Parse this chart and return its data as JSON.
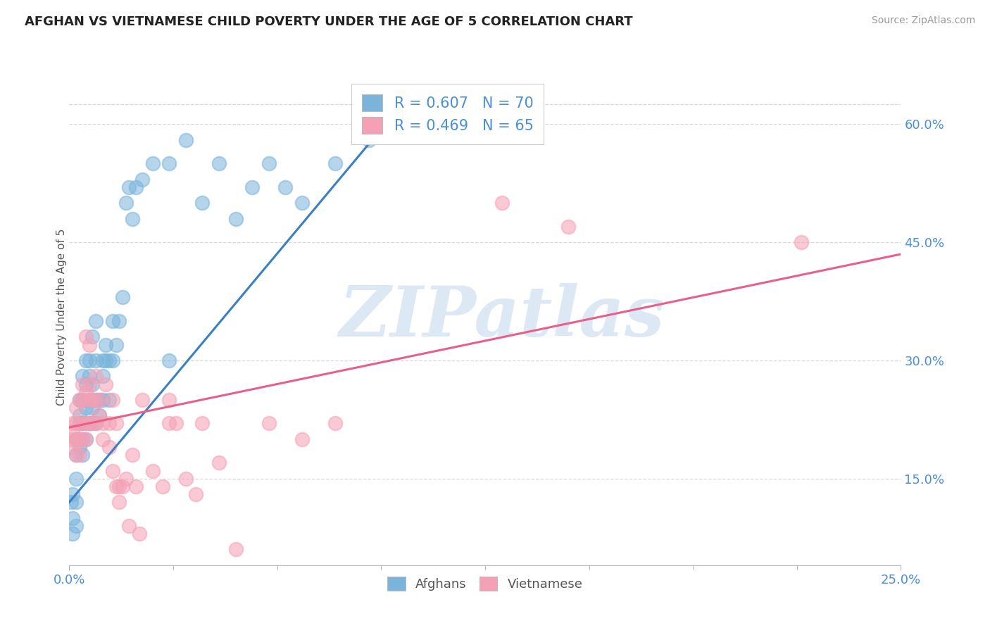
{
  "title": "AFGHAN VS VIETNAMESE CHILD POVERTY UNDER THE AGE OF 5 CORRELATION CHART",
  "source": "Source: ZipAtlas.com",
  "ylabel": "Child Poverty Under the Age of 5",
  "xlim": [
    0.0,
    0.25
  ],
  "ylim": [
    0.04,
    0.67
  ],
  "yticks_right": [
    0.15,
    0.3,
    0.45,
    0.6
  ],
  "ytick_right_labels": [
    "15.0%",
    "30.0%",
    "45.0%",
    "60.0%"
  ],
  "afghan_color": "#7ab4db",
  "viet_color": "#f5a0b5",
  "afghan_line_color": "#3a7fc1",
  "viet_line_color": "#e8608a",
  "afghan_R": 0.607,
  "afghan_N": 70,
  "viet_R": 0.469,
  "viet_N": 65,
  "watermark": "ZIPatlas",
  "background_color": "#ffffff",
  "grid_color": "#d8d8d8",
  "legend_label_afghan": "Afghans",
  "legend_label_viet": "Vietnamese",
  "tick_color": "#4a90d9",
  "afghan_scatter": [
    [
      0.0005,
      0.12
    ],
    [
      0.001,
      0.1
    ],
    [
      0.001,
      0.08
    ],
    [
      0.001,
      0.13
    ],
    [
      0.002,
      0.09
    ],
    [
      0.002,
      0.12
    ],
    [
      0.002,
      0.15
    ],
    [
      0.002,
      0.2
    ],
    [
      0.002,
      0.18
    ],
    [
      0.003,
      0.22
    ],
    [
      0.003,
      0.2
    ],
    [
      0.003,
      0.25
    ],
    [
      0.003,
      0.19
    ],
    [
      0.003,
      0.23
    ],
    [
      0.004,
      0.22
    ],
    [
      0.004,
      0.25
    ],
    [
      0.004,
      0.28
    ],
    [
      0.004,
      0.2
    ],
    [
      0.004,
      0.18
    ],
    [
      0.004,
      0.22
    ],
    [
      0.005,
      0.24
    ],
    [
      0.005,
      0.27
    ],
    [
      0.005,
      0.2
    ],
    [
      0.005,
      0.3
    ],
    [
      0.005,
      0.22
    ],
    [
      0.006,
      0.22
    ],
    [
      0.006,
      0.25
    ],
    [
      0.006,
      0.3
    ],
    [
      0.006,
      0.28
    ],
    [
      0.006,
      0.22
    ],
    [
      0.007,
      0.24
    ],
    [
      0.007,
      0.27
    ],
    [
      0.007,
      0.25
    ],
    [
      0.007,
      0.33
    ],
    [
      0.008,
      0.25
    ],
    [
      0.008,
      0.3
    ],
    [
      0.008,
      0.35
    ],
    [
      0.008,
      0.22
    ],
    [
      0.009,
      0.25
    ],
    [
      0.009,
      0.23
    ],
    [
      0.01,
      0.28
    ],
    [
      0.01,
      0.3
    ],
    [
      0.01,
      0.25
    ],
    [
      0.011,
      0.32
    ],
    [
      0.011,
      0.3
    ],
    [
      0.012,
      0.25
    ],
    [
      0.012,
      0.3
    ],
    [
      0.013,
      0.35
    ],
    [
      0.013,
      0.3
    ],
    [
      0.014,
      0.32
    ],
    [
      0.015,
      0.35
    ],
    [
      0.016,
      0.38
    ],
    [
      0.017,
      0.5
    ],
    [
      0.018,
      0.52
    ],
    [
      0.019,
      0.48
    ],
    [
      0.02,
      0.52
    ],
    [
      0.022,
      0.53
    ],
    [
      0.025,
      0.55
    ],
    [
      0.03,
      0.3
    ],
    [
      0.03,
      0.55
    ],
    [
      0.035,
      0.58
    ],
    [
      0.04,
      0.5
    ],
    [
      0.045,
      0.55
    ],
    [
      0.05,
      0.48
    ],
    [
      0.055,
      0.52
    ],
    [
      0.06,
      0.55
    ],
    [
      0.065,
      0.52
    ],
    [
      0.07,
      0.5
    ],
    [
      0.08,
      0.55
    ],
    [
      0.09,
      0.58
    ]
  ],
  "viet_scatter": [
    [
      0.0005,
      0.2
    ],
    [
      0.001,
      0.19
    ],
    [
      0.001,
      0.22
    ],
    [
      0.001,
      0.21
    ],
    [
      0.002,
      0.2
    ],
    [
      0.002,
      0.18
    ],
    [
      0.002,
      0.22
    ],
    [
      0.002,
      0.24
    ],
    [
      0.003,
      0.2
    ],
    [
      0.003,
      0.18
    ],
    [
      0.003,
      0.22
    ],
    [
      0.003,
      0.25
    ],
    [
      0.004,
      0.22
    ],
    [
      0.004,
      0.2
    ],
    [
      0.004,
      0.25
    ],
    [
      0.004,
      0.27
    ],
    [
      0.005,
      0.26
    ],
    [
      0.005,
      0.22
    ],
    [
      0.005,
      0.2
    ],
    [
      0.005,
      0.33
    ],
    [
      0.006,
      0.25
    ],
    [
      0.006,
      0.27
    ],
    [
      0.006,
      0.22
    ],
    [
      0.006,
      0.32
    ],
    [
      0.007,
      0.25
    ],
    [
      0.007,
      0.22
    ],
    [
      0.008,
      0.28
    ],
    [
      0.008,
      0.25
    ],
    [
      0.008,
      0.22
    ],
    [
      0.009,
      0.25
    ],
    [
      0.009,
      0.23
    ],
    [
      0.01,
      0.22
    ],
    [
      0.01,
      0.2
    ],
    [
      0.011,
      0.27
    ],
    [
      0.012,
      0.22
    ],
    [
      0.012,
      0.19
    ],
    [
      0.013,
      0.25
    ],
    [
      0.013,
      0.16
    ],
    [
      0.014,
      0.14
    ],
    [
      0.014,
      0.22
    ],
    [
      0.015,
      0.12
    ],
    [
      0.015,
      0.14
    ],
    [
      0.016,
      0.14
    ],
    [
      0.017,
      0.15
    ],
    [
      0.018,
      0.09
    ],
    [
      0.019,
      0.18
    ],
    [
      0.02,
      0.14
    ],
    [
      0.021,
      0.08
    ],
    [
      0.022,
      0.25
    ],
    [
      0.025,
      0.16
    ],
    [
      0.028,
      0.14
    ],
    [
      0.03,
      0.22
    ],
    [
      0.03,
      0.25
    ],
    [
      0.032,
      0.22
    ],
    [
      0.035,
      0.15
    ],
    [
      0.038,
      0.13
    ],
    [
      0.04,
      0.22
    ],
    [
      0.045,
      0.17
    ],
    [
      0.05,
      0.06
    ],
    [
      0.06,
      0.22
    ],
    [
      0.07,
      0.2
    ],
    [
      0.08,
      0.22
    ],
    [
      0.13,
      0.5
    ],
    [
      0.15,
      0.47
    ],
    [
      0.22,
      0.45
    ]
  ]
}
